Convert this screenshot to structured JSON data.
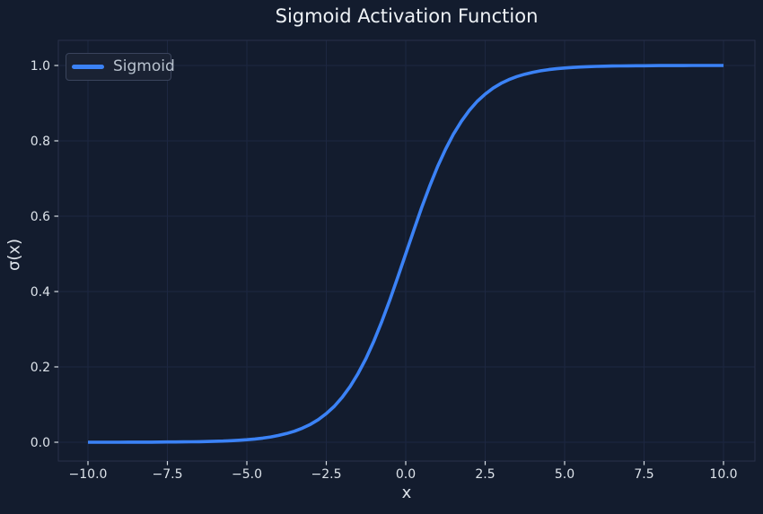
{
  "colors": {
    "background": "#131c2e",
    "grid": "#1d2741",
    "spine": "#28314a",
    "tick": "#d7dde4",
    "tick_label": "#dde3ea",
    "title": "#eef2f6",
    "axis_label": "#dde3ea",
    "legend_background": "#1a2233",
    "legend_border": "#3a445c",
    "legend_text": "#b9c3cf",
    "curve": "#3b82f6"
  },
  "chart_data": {
    "type": "line",
    "title": "Sigmoid Activation Function",
    "xlabel": "x",
    "ylabel": "σ(x)",
    "grid": true,
    "legend": {
      "position": "upper left",
      "entries": [
        "Sigmoid"
      ]
    },
    "xlim": [
      -11,
      11
    ],
    "ylim": [
      -0.05,
      1.067
    ],
    "xticks": {
      "values": [
        -10.0,
        -7.5,
        -5.0,
        -2.5,
        0.0,
        2.5,
        5.0,
        7.5,
        10.0
      ],
      "labels": [
        "−10.0",
        "−7.5",
        "−5.0",
        "−2.5",
        "0.0",
        "2.5",
        "5.0",
        "7.5",
        "10.0"
      ]
    },
    "yticks": {
      "values": [
        0.0,
        0.2,
        0.4,
        0.6,
        0.8,
        1.0
      ],
      "labels": [
        "0.0",
        "0.2",
        "0.4",
        "0.6",
        "0.8",
        "1.0"
      ]
    },
    "series": [
      {
        "name": "Sigmoid",
        "color": "#3b82f6",
        "x": [
          -10,
          -9.75,
          -9.5,
          -9.25,
          -9,
          -8.75,
          -8.5,
          -8.25,
          -8,
          -7.75,
          -7.5,
          -7.25,
          -7,
          -6.75,
          -6.5,
          -6.25,
          -6,
          -5.75,
          -5.5,
          -5.25,
          -5,
          -4.75,
          -4.5,
          -4.25,
          -4,
          -3.75,
          -3.5,
          -3.25,
          -3,
          -2.75,
          -2.5,
          -2.25,
          -2,
          -1.75,
          -1.5,
          -1.25,
          -1,
          -0.75,
          -0.5,
          -0.25,
          0,
          0.25,
          0.5,
          0.75,
          1,
          1.25,
          1.5,
          1.75,
          2,
          2.25,
          2.5,
          2.75,
          3,
          3.25,
          3.5,
          3.75,
          4,
          4.25,
          4.5,
          4.75,
          5,
          5.25,
          5.5,
          5.75,
          6,
          6.25,
          6.5,
          6.75,
          7,
          7.25,
          7.5,
          7.75,
          8,
          8.25,
          8.5,
          8.75,
          9,
          9.25,
          9.5,
          9.75,
          10
        ],
        "y": [
          0.0,
          0.0001,
          0.0001,
          0.0001,
          0.0001,
          0.0002,
          0.0002,
          0.0003,
          0.0003,
          0.0004,
          0.0006,
          0.0007,
          0.0009,
          0.0012,
          0.0015,
          0.0019,
          0.0025,
          0.0032,
          0.0041,
          0.0052,
          0.0067,
          0.0086,
          0.011,
          0.0141,
          0.018,
          0.023,
          0.0293,
          0.0373,
          0.0474,
          0.0601,
          0.0759,
          0.0953,
          0.1192,
          0.148,
          0.1824,
          0.2227,
          0.2689,
          0.3208,
          0.3775,
          0.4378,
          0.5,
          0.5622,
          0.6225,
          0.6792,
          0.7311,
          0.7773,
          0.8176,
          0.852,
          0.8808,
          0.9047,
          0.9241,
          0.9399,
          0.9526,
          0.9627,
          0.9707,
          0.977,
          0.982,
          0.9859,
          0.989,
          0.9914,
          0.9933,
          0.9948,
          0.9959,
          0.9968,
          0.9975,
          0.9981,
          0.9985,
          0.9988,
          0.9991,
          0.9993,
          0.9994,
          0.9996,
          0.9997,
          0.9997,
          0.9998,
          0.9998,
          0.9999,
          0.9999,
          0.9999,
          0.9999,
          1.0
        ]
      }
    ]
  }
}
